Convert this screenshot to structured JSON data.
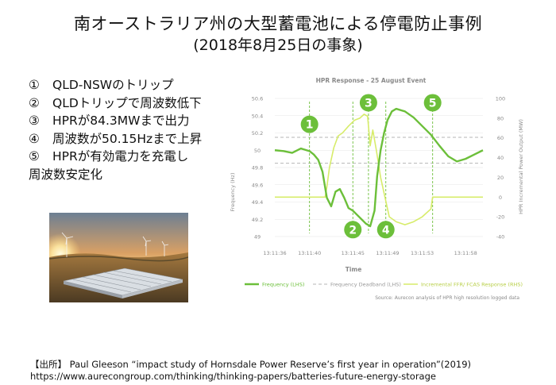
{
  "slide": {
    "title": "南オーストラリア州の大型蓄電池による停電防止事例",
    "subtitle": "(2018年8月25日の事象)",
    "steps": [
      {
        "num": "①",
        "text": "QLD-NSWのトリップ"
      },
      {
        "num": "②",
        "text": "QLDトリップで周波数低下"
      },
      {
        "num": "③",
        "text": "HPRが84.3MWまで出力"
      },
      {
        "num": "④",
        "text": "周波数が50.15Hzまで上昇"
      },
      {
        "num": "⑤",
        "text": "HPRが有効電力を充電し",
        "continuation": "周波数安定化"
      }
    ],
    "citation_line1": "【出所】 Paul Gleeson “impact study of Hornsdale Power Reserve’s first year in operation”(2019)",
    "citation_line2": "https://www.aurecongroup.com/thinking/thinking-papers/batteries-future-energy-storage"
  },
  "colors": {
    "frequency": "#6cbf3a",
    "response": "#d7ec6a",
    "deadband": "#b5b5b5",
    "marker": "#6cbf3a",
    "axis_text": "#8a8a8a"
  },
  "chart_data": {
    "type": "line",
    "title": "HPR Response - 25 August Event",
    "xlabel": "Time",
    "ylabel_left": "Frequency (Hz)",
    "ylabel_right": "HPR Incremental Power Output (MW)",
    "x_ticks": [
      "13:11:36",
      "13:11:40",
      "13:11:45",
      "13:11:49",
      "13:11:53",
      "13:11:58"
    ],
    "y_left_ticks": [
      "49",
      "49.2",
      "49.4",
      "49.6",
      "49.8",
      "50",
      "50.2",
      "50.4",
      "50.6"
    ],
    "y_right_ticks": [
      "-40",
      "-20",
      "0",
      "20",
      "40",
      "60",
      "80",
      "100"
    ],
    "ylim_left": [
      49,
      50.6
    ],
    "ylim_right": [
      -40,
      100
    ],
    "xlim_seconds_after_13_11_36": [
      0,
      24
    ],
    "deadband_hz": [
      49.85,
      50.15
    ],
    "source": "Source: Aurecon analysis of HPR high resolution logged data",
    "series": [
      {
        "name": "Frequency (LHS)",
        "axis": "left",
        "x": [
          0,
          1,
          2,
          3,
          4,
          4.5,
          5,
          5.5,
          6,
          6.5,
          7,
          7.5,
          8,
          8.5,
          9,
          9.5,
          10,
          10.5,
          11,
          11.5,
          11.8,
          12.2,
          12.6,
          13,
          13.5,
          14,
          15,
          16,
          17,
          18,
          19,
          20,
          21,
          22,
          23,
          24
        ],
        "y": [
          50.0,
          49.99,
          49.97,
          50.02,
          49.99,
          49.95,
          49.89,
          49.75,
          49.45,
          49.35,
          49.52,
          49.55,
          49.45,
          49.33,
          49.3,
          49.25,
          49.2,
          49.15,
          49.12,
          49.3,
          49.7,
          50.0,
          50.2,
          50.35,
          50.45,
          50.48,
          50.45,
          50.38,
          50.28,
          50.18,
          50.05,
          49.93,
          49.87,
          49.9,
          49.95,
          50.0
        ]
      },
      {
        "name": "Incremental FFR/ FCAS Response (RHS)",
        "axis": "right",
        "x": [
          0,
          2,
          4,
          5.8,
          6.0,
          6.3,
          6.8,
          7.3,
          7.8,
          8.5,
          9.2,
          9.8,
          10.3,
          10.7,
          11.0,
          11.3,
          11.7,
          12.2,
          12.7,
          13.2,
          14,
          15,
          16,
          17,
          18,
          18.2,
          20,
          24
        ],
        "y": [
          0,
          0,
          0,
          0,
          10,
          30,
          50,
          62,
          65,
          72,
          78,
          80,
          84,
          82,
          52,
          68,
          48,
          20,
          0,
          -20,
          -25,
          -28,
          -25,
          -20,
          -12,
          0,
          0,
          0
        ]
      },
      {
        "name": "Frequency Deadband (LHS)",
        "axis": "left",
        "dashed": true,
        "x": [
          0,
          24
        ],
        "y_lower": 49.85,
        "y_upper": 50.15
      }
    ],
    "markers": [
      {
        "label": "1",
        "x": 4.0
      },
      {
        "label": "2",
        "x": 9.0
      },
      {
        "label": "3",
        "x": 10.8
      },
      {
        "label": "4",
        "x": 12.8
      },
      {
        "label": "5",
        "x": 18.2
      }
    ]
  }
}
